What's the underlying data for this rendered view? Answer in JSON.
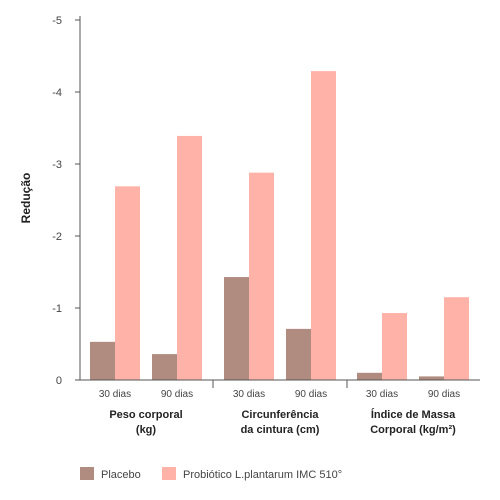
{
  "chart_data": {
    "type": "bar",
    "ylabel": "Redução",
    "ylim": [
      0,
      -5
    ],
    "yticks": [
      "0",
      "-1",
      "-2",
      "-3",
      "-4",
      "-5"
    ],
    "groups": [
      {
        "title_lines": [
          "Peso corporal",
          "(kg)"
        ],
        "categories": [
          "30 dias",
          "90 dias"
        ]
      },
      {
        "title_lines": [
          "Circunferência",
          "da cintura (cm)"
        ],
        "categories": [
          "30 dias",
          "90 dias"
        ]
      },
      {
        "title_lines": [
          "Índice de Massa",
          "Corporal (kg/m²)"
        ],
        "categories": [
          "30 dias",
          "90 dias"
        ]
      }
    ],
    "series": [
      {
        "name": "Placebo",
        "color": "#b08c80",
        "values": [
          -0.53,
          -0.36,
          -1.43,
          -0.71,
          -0.1,
          -0.05
        ]
      },
      {
        "name": "Probiótico L.plantarum IMC 510°",
        "color": "#ffb3a8",
        "values": [
          -2.69,
          -3.39,
          -2.88,
          -4.29,
          -0.93,
          -1.15
        ]
      }
    ],
    "legend_position": "bottom-left",
    "grid": false
  }
}
